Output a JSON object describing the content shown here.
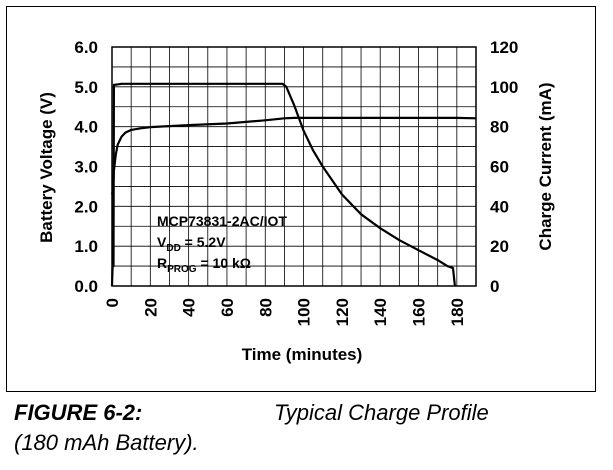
{
  "chart_data": {
    "type": "line",
    "xlabel": "Time (minutes)",
    "ylabel": "Battery Voltage (V)",
    "y2label": "Charge Current (mA)",
    "xlim": [
      0,
      190
    ],
    "ylim": [
      0,
      6
    ],
    "y2lim": [
      0,
      120
    ],
    "grid": true,
    "x_ticks": [
      "0",
      "20",
      "40",
      "60",
      "80",
      "100",
      "120",
      "140",
      "160",
      "180"
    ],
    "y_ticks": [
      "0.0",
      "1.0",
      "2.0",
      "3.0",
      "4.0",
      "5.0",
      "6.0"
    ],
    "y2_ticks": [
      "0",
      "20",
      "40",
      "60",
      "80",
      "100",
      "120"
    ],
    "annotation": {
      "line1": "MCP73831-2AC/IOT",
      "line2_main": "V",
      "line2_sub": "DD",
      "line2_rest": " = 5.2V",
      "line3_main": "R",
      "line3_sub": "PROG",
      "line3_rest": " = 10 kΩ"
    },
    "series": [
      {
        "axis": "right",
        "x": [
          0,
          0.3,
          0.8,
          1,
          1.5,
          5,
          20,
          40,
          60,
          80,
          89,
          91,
          95,
          100,
          105,
          110,
          120,
          130,
          140,
          150,
          160,
          170,
          175,
          178,
          179
        ],
        "y": [
          0,
          10,
          10,
          101,
          101,
          101.5,
          101.5,
          101.5,
          101.5,
          101.5,
          101.5,
          100,
          91,
          78,
          68,
          60,
          46,
          36,
          29,
          23,
          18,
          13,
          10,
          9,
          0
        ]
      },
      {
        "axis": "left",
        "x": [
          0,
          0.5,
          1,
          2,
          3,
          5,
          7,
          10,
          15,
          20,
          40,
          60,
          80,
          90,
          95,
          100,
          120,
          150,
          180,
          190
        ],
        "y": [
          2.3,
          2.4,
          2.9,
          3.3,
          3.55,
          3.75,
          3.85,
          3.92,
          3.96,
          3.99,
          4.04,
          4.08,
          4.16,
          4.21,
          4.22,
          4.22,
          4.22,
          4.22,
          4.22,
          4.21
        ]
      }
    ]
  },
  "caption": {
    "figure_label": "FIGURE 6-2:",
    "title_line1": "Typical Charge Profile",
    "title_line2": "(180 mAh Battery)."
  },
  "colors": {
    "line": "#000000",
    "grid": "#000000",
    "background": "#ffffff"
  }
}
